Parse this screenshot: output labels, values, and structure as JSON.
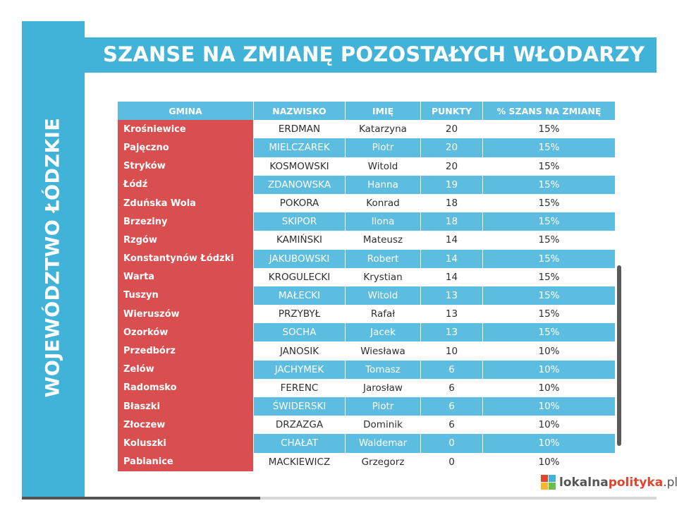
{
  "side_label": "WOJEWÓDZTWO ŁÓDZKIE",
  "title": "SZANSE NA ZMIANĘ POZOSTAŁYCH WŁODARZY",
  "columns": [
    "GMINA",
    "NAZWISKO",
    "IMIĘ",
    "PUNKTY",
    "% SZANS NA ZMIANĘ"
  ],
  "rows": [
    [
      "Krośniewice",
      "ERDMAN",
      "Katarzyna",
      "20",
      "15%"
    ],
    [
      "Pajęczno",
      "MIELCZAREK",
      "Piotr",
      "20",
      "15%"
    ],
    [
      "Stryków",
      "KOSMOWSKI",
      "Witold",
      "20",
      "15%"
    ],
    [
      "Łódź",
      "ZDANOWSKA",
      "Hanna",
      "19",
      "15%"
    ],
    [
      "Zduńska Wola",
      "POKORA",
      "Konrad",
      "18",
      "15%"
    ],
    [
      "Brzeziny",
      "SKIPOR",
      "Ilona",
      "18",
      "15%"
    ],
    [
      "Rzgów",
      "KAMIŃSKI",
      "Mateusz",
      "14",
      "15%"
    ],
    [
      "Konstantynów Łódzki",
      "JAKUBOWSKI",
      "Robert",
      "14",
      "15%"
    ],
    [
      "Warta",
      "KROGULECKI",
      "Krystian",
      "14",
      "15%"
    ],
    [
      "Tuszyn",
      "MAŁECKI",
      "Witold",
      "13",
      "15%"
    ],
    [
      "Wieruszów",
      "PRZYBYŁ",
      "Rafał",
      "13",
      "15%"
    ],
    [
      "Ozorków",
      "SOCHA",
      "Jacek",
      "13",
      "15%"
    ],
    [
      "Przedbórz",
      "JANOSIK",
      "Wiesława",
      "10",
      "10%"
    ],
    [
      "Zelów",
      "JACHYMEK",
      "Tomasz",
      "6",
      "10%"
    ],
    [
      "Radomsko",
      "FERENC",
      "Jarosław",
      "6",
      "10%"
    ],
    [
      "Błaszki",
      "ŚWIDERSKI",
      "Piotr",
      "6",
      "10%"
    ],
    [
      "Złoczew",
      "DRZAZGA",
      "Dominik",
      "6",
      "10%"
    ],
    [
      "Koluszki",
      "CHAŁAT",
      "Waldemar",
      "0",
      "10%"
    ],
    [
      "Pabianice",
      "MACKIEWICZ",
      "Grzegorz",
      "0",
      "10%"
    ]
  ],
  "logo": {
    "part_a": "lokalna",
    "part_b": "polityka",
    "part_c": ".pl"
  },
  "colors": {
    "accent_blue": "#41b3d8",
    "row_blue": "#5cbde0",
    "gmina_red": "#d94f4f"
  }
}
